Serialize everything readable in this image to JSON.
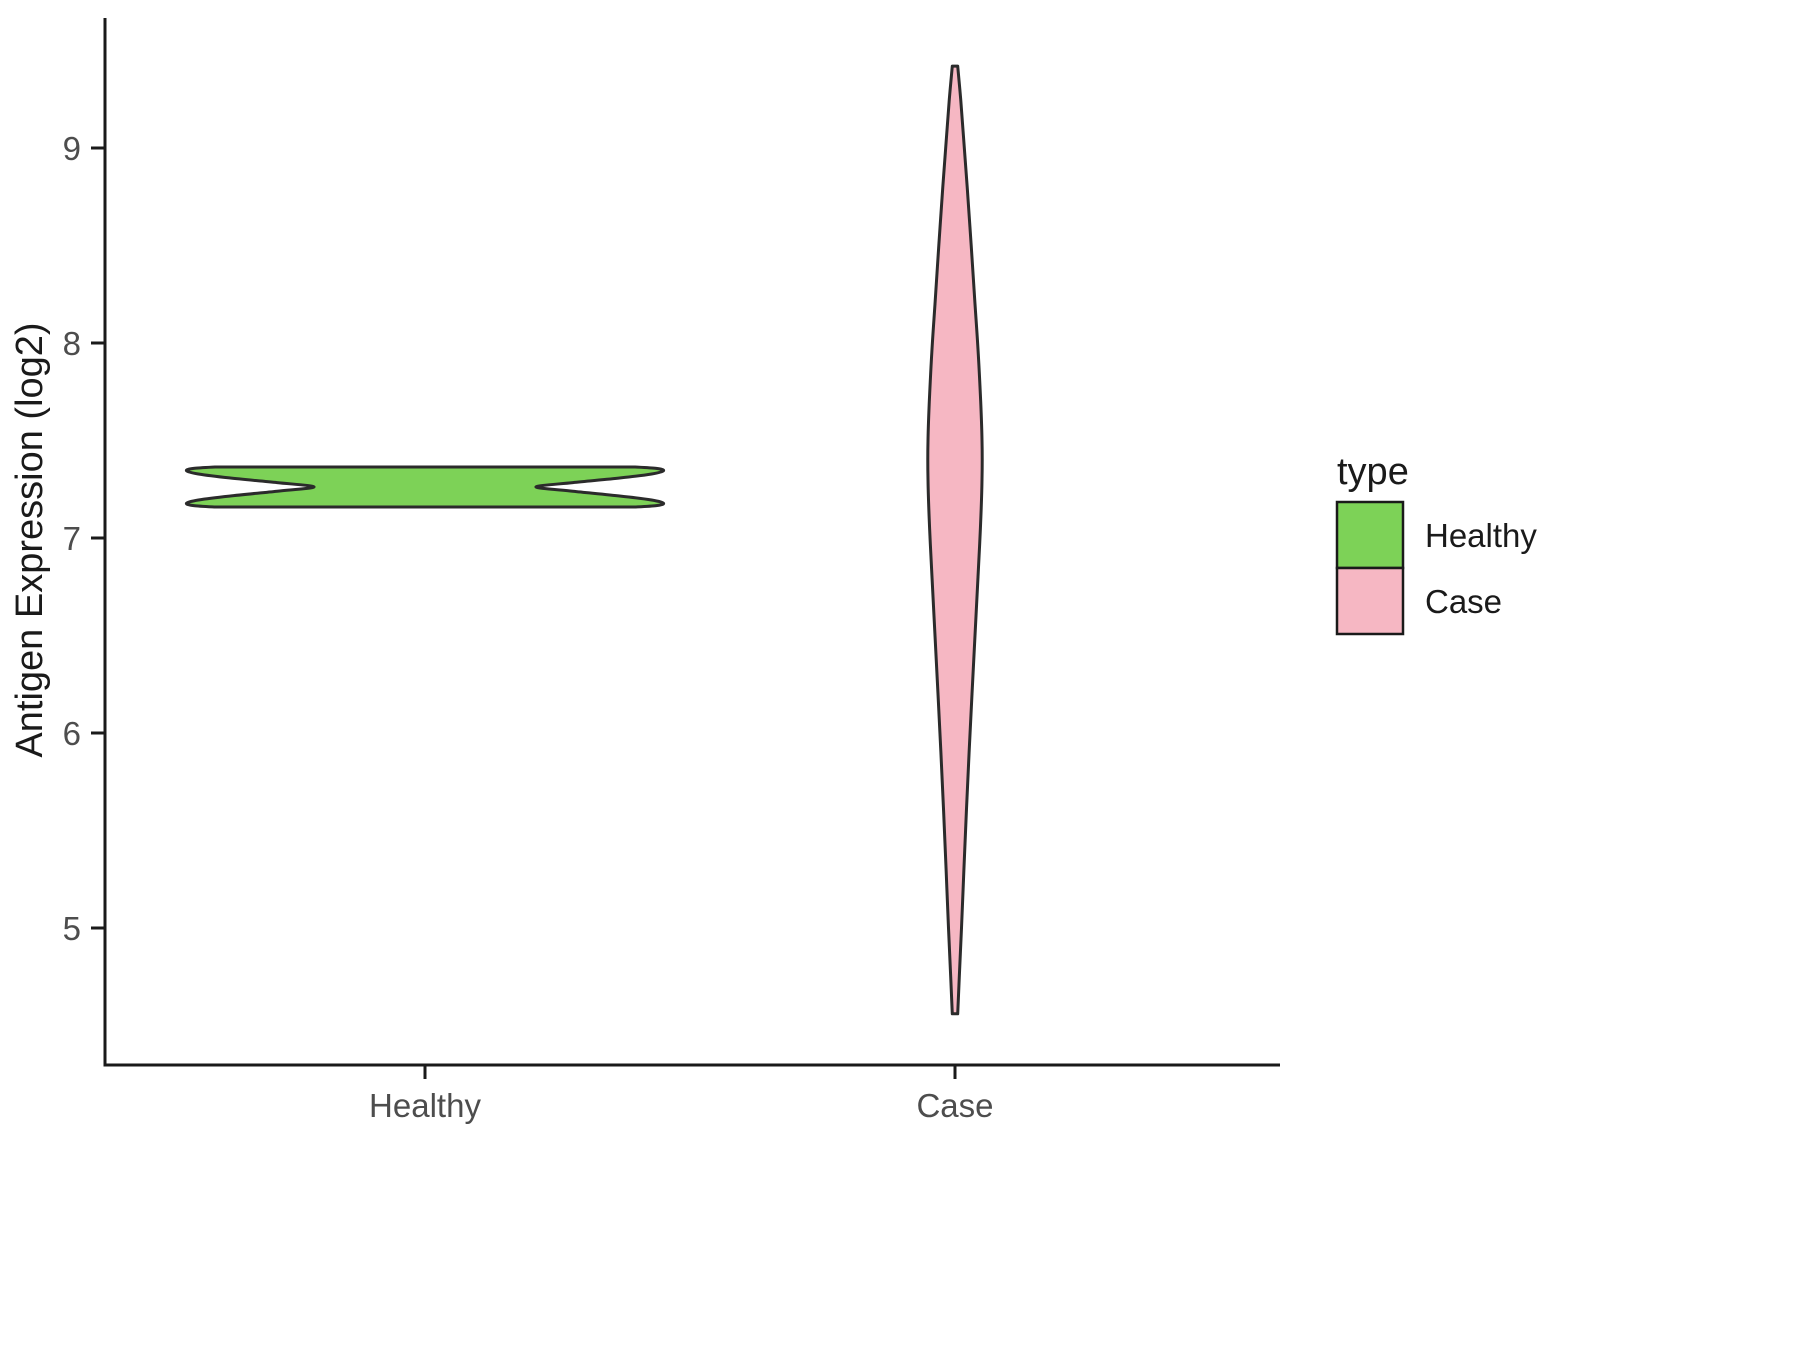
{
  "chart_data": {
    "type": "violin",
    "title": "",
    "xlabel": "",
    "ylabel": "Antigen Expression (log2)",
    "categories": [
      "Healthy",
      "Case"
    ],
    "x_positions": [
      1,
      2
    ],
    "yticks": [
      5,
      6,
      7,
      8,
      9
    ],
    "ylim": [
      4.3,
      9.66
    ],
    "grid": false,
    "background": "#ffffff",
    "axis_color": "#1a1a1a",
    "tick_label_color": "#4d4d4d",
    "legend": {
      "title": "type",
      "position": "right",
      "entries": [
        {
          "label": "Healthy",
          "color": "#7dd257"
        },
        {
          "label": "Case",
          "color": "#f6b7c3"
        }
      ]
    },
    "series": [
      {
        "name": "Healthy",
        "fill": "#7dd257",
        "outline": "#2b2b2b",
        "center": 1,
        "width": 0.9,
        "profile": [
          [
            7.159,
            0.88
          ],
          [
            7.166,
            0.97
          ],
          [
            7.178,
            1.0
          ],
          [
            7.195,
            0.95
          ],
          [
            7.215,
            0.82
          ],
          [
            7.24,
            0.62
          ],
          [
            7.262,
            0.465
          ],
          [
            7.284,
            0.62
          ],
          [
            7.308,
            0.82
          ],
          [
            7.328,
            0.95
          ],
          [
            7.345,
            1.0
          ],
          [
            7.357,
            0.97
          ],
          [
            7.364,
            0.88
          ]
        ]
      },
      {
        "name": "Case",
        "fill": "#f6b7c3",
        "outline": "#2b2b2b",
        "center": 2,
        "width": 0.102,
        "profile": [
          [
            4.56,
            0.1
          ],
          [
            4.75,
            0.16
          ],
          [
            5.0,
            0.24
          ],
          [
            5.3,
            0.33
          ],
          [
            5.6,
            0.42
          ],
          [
            5.9,
            0.52
          ],
          [
            6.2,
            0.63
          ],
          [
            6.5,
            0.74
          ],
          [
            6.8,
            0.85
          ],
          [
            7.05,
            0.94
          ],
          [
            7.3,
            1.0
          ],
          [
            7.5,
            1.0
          ],
          [
            7.7,
            0.95
          ],
          [
            7.95,
            0.86
          ],
          [
            8.2,
            0.74
          ],
          [
            8.5,
            0.6
          ],
          [
            8.8,
            0.45
          ],
          [
            9.05,
            0.32
          ],
          [
            9.25,
            0.21
          ],
          [
            9.42,
            0.1
          ]
        ]
      }
    ]
  }
}
